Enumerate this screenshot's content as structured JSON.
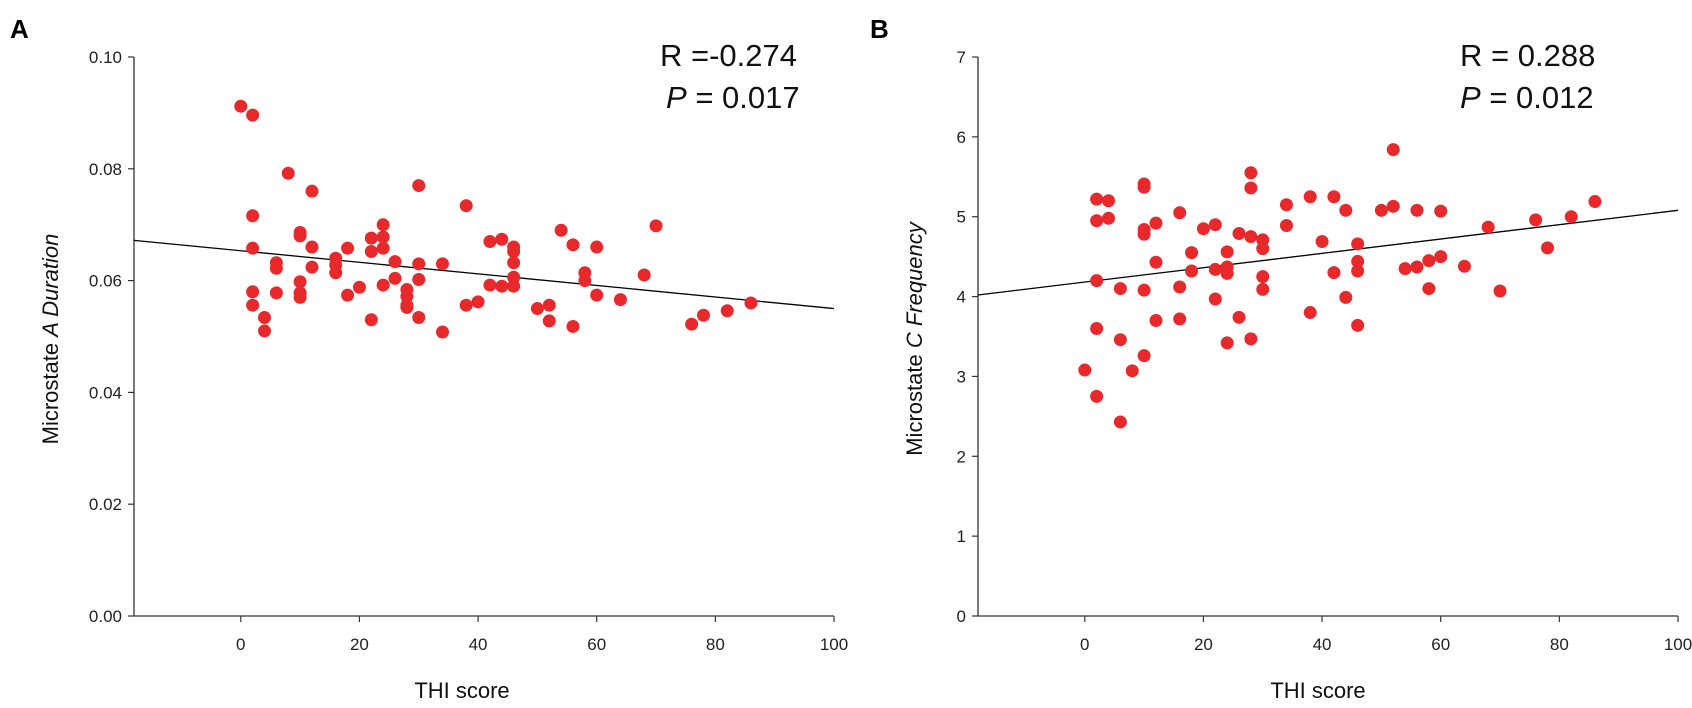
{
  "colors": {
    "point": "#e8292c",
    "fit_line": "#000000",
    "axis": "#333333"
  },
  "chart_data": [
    {
      "type": "scatter",
      "panel_label": "A",
      "xlabel": "THI score",
      "ylabel_prefix": "Microstate ",
      "ylabel_italic": "A Duration",
      "xlim": [
        -18,
        100
      ],
      "ylim": [
        0,
        0.1
      ],
      "xticks": [
        0,
        20,
        40,
        60,
        80,
        100
      ],
      "yticks": [
        0,
        0.02,
        0.04,
        0.06,
        0.08,
        0.1
      ],
      "ytick_labels": [
        "0.00",
        "0.02",
        "0.04",
        "0.06",
        "0.08",
        "0.10"
      ],
      "stat_r_label": "R =",
      "stat_r_value": "-0.274",
      "stat_p_label": "P",
      "stat_p_value": "= 0.017",
      "fit_line": {
        "x": [
          -18,
          100
        ],
        "y": [
          0.0672,
          0.055
        ]
      },
      "points": [
        [
          0,
          0.0912
        ],
        [
          2,
          0.0896
        ],
        [
          2,
          0.0716
        ],
        [
          2,
          0.0658
        ],
        [
          2,
          0.058
        ],
        [
          2,
          0.0556
        ],
        [
          4,
          0.0534
        ],
        [
          4,
          0.051
        ],
        [
          6,
          0.0632
        ],
        [
          6,
          0.0622
        ],
        [
          6,
          0.0578
        ],
        [
          8,
          0.0792
        ],
        [
          10,
          0.0686
        ],
        [
          10,
          0.068
        ],
        [
          10,
          0.0598
        ],
        [
          10,
          0.0578
        ],
        [
          10,
          0.057
        ],
        [
          12,
          0.076
        ],
        [
          12,
          0.066
        ],
        [
          12,
          0.0624
        ],
        [
          16,
          0.064
        ],
        [
          16,
          0.0628
        ],
        [
          16,
          0.0614
        ],
        [
          18,
          0.0658
        ],
        [
          18,
          0.0574
        ],
        [
          20,
          0.0588
        ],
        [
          22,
          0.0676
        ],
        [
          22,
          0.0652
        ],
        [
          22,
          0.053
        ],
        [
          24,
          0.07
        ],
        [
          24,
          0.0678
        ],
        [
          24,
          0.0658
        ],
        [
          24,
          0.0592
        ],
        [
          26,
          0.0634
        ],
        [
          26,
          0.0604
        ],
        [
          28,
          0.0584
        ],
        [
          28,
          0.0572
        ],
        [
          28,
          0.0556
        ],
        [
          28,
          0.0552
        ],
        [
          30,
          0.077
        ],
        [
          30,
          0.063
        ],
        [
          30,
          0.0602
        ],
        [
          30,
          0.0534
        ],
        [
          34,
          0.063
        ],
        [
          34,
          0.0508
        ],
        [
          38,
          0.0734
        ],
        [
          38,
          0.0556
        ],
        [
          40,
          0.0562
        ],
        [
          42,
          0.067
        ],
        [
          42,
          0.0592
        ],
        [
          44,
          0.0674
        ],
        [
          44,
          0.059
        ],
        [
          46,
          0.066
        ],
        [
          46,
          0.0652
        ],
        [
          46,
          0.0632
        ],
        [
          46,
          0.0606
        ],
        [
          46,
          0.059
        ],
        [
          50,
          0.055
        ],
        [
          52,
          0.0556
        ],
        [
          52,
          0.0528
        ],
        [
          54,
          0.069
        ],
        [
          56,
          0.0664
        ],
        [
          56,
          0.0518
        ],
        [
          58,
          0.0614
        ],
        [
          58,
          0.06
        ],
        [
          60,
          0.066
        ],
        [
          60,
          0.0574
        ],
        [
          64,
          0.0566
        ],
        [
          68,
          0.061
        ],
        [
          70,
          0.0698
        ],
        [
          76,
          0.0522
        ],
        [
          78,
          0.0538
        ],
        [
          82,
          0.0546
        ],
        [
          86,
          0.056
        ]
      ]
    },
    {
      "type": "scatter",
      "panel_label": "B",
      "xlabel": "THI score",
      "ylabel_prefix": "Microstate ",
      "ylabel_italic": "C Frequency",
      "xlim": [
        -18,
        100
      ],
      "ylim": [
        0,
        7
      ],
      "xticks": [
        0,
        20,
        40,
        60,
        80,
        100
      ],
      "yticks": [
        0,
        1,
        2,
        3,
        4,
        5,
        6,
        7
      ],
      "ytick_labels": [
        "0",
        "1",
        "2",
        "3",
        "4",
        "5",
        "6",
        "7"
      ],
      "stat_r_label": "R =",
      "stat_r_value": "0.288",
      "stat_p_label": "P",
      "stat_p_value": "= 0.012",
      "fit_line": {
        "x": [
          -18,
          100
        ],
        "y": [
          4.02,
          5.08
        ]
      },
      "points": [
        [
          0,
          3.08
        ],
        [
          2,
          5.22
        ],
        [
          2,
          4.95
        ],
        [
          2,
          4.2
        ],
        [
          2,
          3.6
        ],
        [
          2,
          2.75
        ],
        [
          4,
          5.2
        ],
        [
          4,
          4.98
        ],
        [
          6,
          4.1
        ],
        [
          6,
          3.46
        ],
        [
          6,
          2.43
        ],
        [
          8,
          3.07
        ],
        [
          10,
          5.41
        ],
        [
          10,
          5.37
        ],
        [
          10,
          4.84
        ],
        [
          10,
          4.78
        ],
        [
          10,
          4.08
        ],
        [
          10,
          3.26
        ],
        [
          12,
          4.92
        ],
        [
          12,
          4.43
        ],
        [
          12,
          3.7
        ],
        [
          16,
          5.05
        ],
        [
          16,
          4.12
        ],
        [
          16,
          3.72
        ],
        [
          18,
          4.55
        ],
        [
          18,
          4.32
        ],
        [
          20,
          4.85
        ],
        [
          22,
          4.9
        ],
        [
          22,
          4.34
        ],
        [
          22,
          3.97
        ],
        [
          24,
          4.56
        ],
        [
          24,
          4.37
        ],
        [
          24,
          4.29
        ],
        [
          24,
          3.42
        ],
        [
          26,
          4.79
        ],
        [
          26,
          3.74
        ],
        [
          28,
          5.55
        ],
        [
          28,
          5.36
        ],
        [
          28,
          4.75
        ],
        [
          28,
          3.47
        ],
        [
          30,
          4.71
        ],
        [
          30,
          4.6
        ],
        [
          30,
          4.25
        ],
        [
          30,
          4.09
        ],
        [
          34,
          5.15
        ],
        [
          34,
          4.89
        ],
        [
          38,
          5.25
        ],
        [
          38,
          3.8
        ],
        [
          40,
          4.69
        ],
        [
          42,
          5.25
        ],
        [
          42,
          4.3
        ],
        [
          44,
          5.08
        ],
        [
          44,
          3.99
        ],
        [
          46,
          4.66
        ],
        [
          46,
          4.44
        ],
        [
          46,
          4.32
        ],
        [
          46,
          3.64
        ],
        [
          50,
          5.08
        ],
        [
          52,
          5.84
        ],
        [
          52,
          5.13
        ],
        [
          54,
          4.35
        ],
        [
          56,
          5.08
        ],
        [
          56,
          4.37
        ],
        [
          58,
          4.45
        ],
        [
          58,
          4.1
        ],
        [
          60,
          5.07
        ],
        [
          60,
          4.5
        ],
        [
          64,
          4.38
        ],
        [
          68,
          4.87
        ],
        [
          70,
          4.07
        ],
        [
          76,
          4.96
        ],
        [
          78,
          4.61
        ],
        [
          82,
          5.0
        ],
        [
          86,
          5.19
        ]
      ]
    }
  ]
}
